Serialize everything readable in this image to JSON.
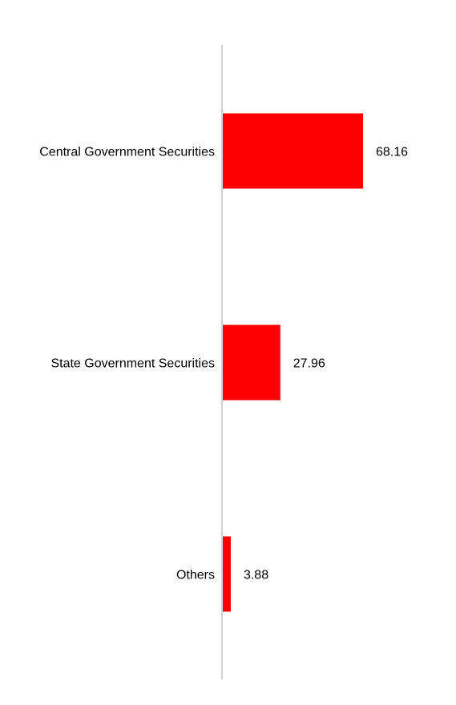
{
  "chart_data": {
    "type": "bar",
    "orientation": "horizontal",
    "categories": [
      "Central Government Securities",
      "State Government Securities",
      "Others"
    ],
    "values": [
      68.16,
      27.96,
      3.88
    ],
    "value_labels": [
      "68.16",
      "27.96",
      "3.88"
    ],
    "title": "",
    "xlabel": "",
    "ylabel": "",
    "xlim": [
      0,
      100
    ],
    "grid": false,
    "legend": "none"
  },
  "colors": {
    "bar": "#ff0000",
    "axis": "#d3d3d3",
    "text": "#000000"
  }
}
